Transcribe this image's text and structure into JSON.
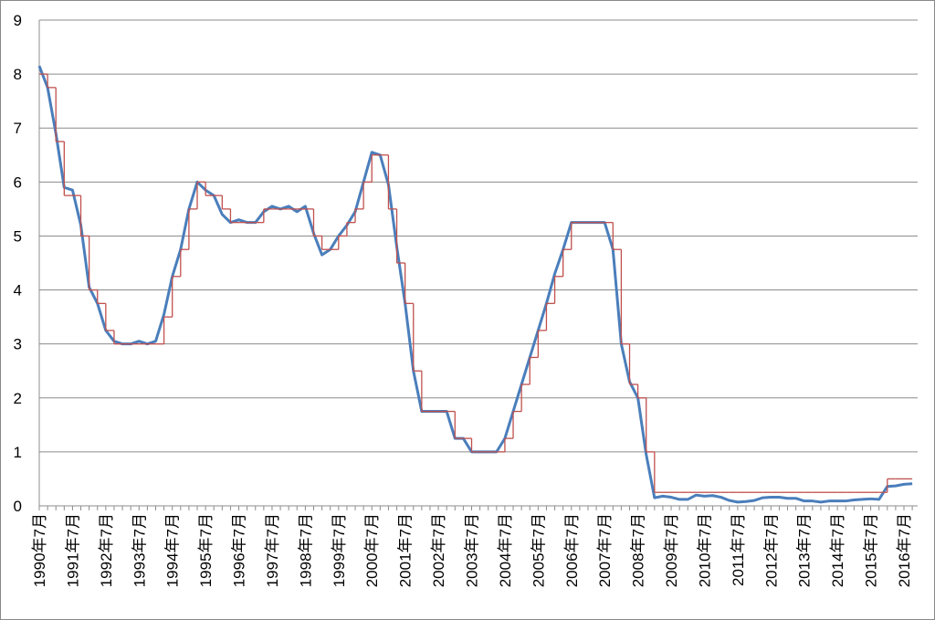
{
  "chart_data": {
    "type": "line",
    "categories": [
      "1990年7月",
      null,
      null,
      null,
      "1991年7月",
      null,
      null,
      null,
      "1992年7月",
      null,
      null,
      null,
      "1993年7月",
      null,
      null,
      null,
      "1994年7月",
      null,
      null,
      null,
      "1995年7月",
      null,
      null,
      null,
      "1996年7月",
      null,
      null,
      null,
      "1997年7月",
      null,
      null,
      null,
      "1998年7月",
      null,
      null,
      null,
      "1999年7月",
      null,
      null,
      null,
      "2000年7月",
      null,
      null,
      null,
      "2001年7月",
      null,
      null,
      null,
      "2002年7月",
      null,
      null,
      null,
      "2003年7月",
      null,
      null,
      null,
      "2004年7月",
      null,
      null,
      null,
      "2005年7月",
      null,
      null,
      null,
      "2006年7月",
      null,
      null,
      null,
      "2007年7月",
      null,
      null,
      null,
      "2008年7月",
      null,
      null,
      null,
      "2009年7月",
      null,
      null,
      null,
      "2010年7月",
      null,
      null,
      null,
      "2011年7月",
      null,
      null,
      null,
      "2012年7月",
      null,
      null,
      null,
      "2013年7月",
      null,
      null,
      null,
      "2014年7月",
      null,
      null,
      null,
      "2015年7月",
      null,
      null,
      null,
      "2016年7月",
      null
    ],
    "series": [
      {
        "color": "#4a7ebb",
        "values": [
          8.15,
          7.75,
          6.9,
          5.9,
          5.85,
          5.2,
          4.05,
          3.75,
          3.25,
          3.05,
          3.0,
          3.0,
          3.05,
          3.0,
          3.05,
          3.55,
          4.25,
          4.75,
          5.5,
          6.0,
          5.85,
          5.75,
          5.4,
          5.25,
          5.3,
          5.25,
          5.25,
          5.45,
          5.55,
          5.5,
          5.55,
          5.45,
          5.55,
          5.05,
          4.65,
          4.75,
          5.0,
          5.2,
          5.45,
          6.0,
          6.55,
          6.5,
          5.95,
          4.8,
          3.75,
          2.5,
          1.75,
          1.75,
          1.75,
          1.75,
          1.25,
          1.25,
          1.0,
          1.0,
          1.0,
          1.0,
          1.25,
          1.75,
          2.25,
          2.75,
          3.25,
          3.75,
          4.3,
          4.75,
          5.25,
          5.25,
          5.25,
          5.25,
          5.25,
          4.75,
          3.0,
          2.3,
          2.0,
          0.95,
          0.15,
          0.18,
          0.16,
          0.12,
          0.12,
          0.2,
          0.18,
          0.19,
          0.16,
          0.1,
          0.07,
          0.08,
          0.1,
          0.15,
          0.16,
          0.16,
          0.14,
          0.14,
          0.09,
          0.09,
          0.07,
          0.09,
          0.09,
          0.09,
          0.11,
          0.12,
          0.13,
          0.12,
          0.36,
          0.37,
          0.4,
          0.41
        ]
      },
      {
        "color": "#c0504d",
        "step": true,
        "values": [
          8.0,
          7.75,
          6.75,
          5.75,
          5.75,
          5.0,
          4.0,
          3.75,
          3.25,
          3.0,
          3.0,
          3.0,
          3.0,
          3.0,
          3.0,
          3.5,
          4.25,
          4.75,
          5.5,
          6.0,
          5.75,
          5.75,
          5.5,
          5.25,
          5.25,
          5.25,
          5.25,
          5.5,
          5.5,
          5.5,
          5.5,
          5.5,
          5.5,
          5.0,
          4.75,
          4.75,
          5.0,
          5.25,
          5.5,
          6.0,
          6.5,
          6.5,
          5.5,
          4.5,
          3.75,
          2.5,
          1.75,
          1.75,
          1.75,
          1.75,
          1.25,
          1.25,
          1.0,
          1.0,
          1.0,
          1.0,
          1.25,
          1.75,
          2.25,
          2.75,
          3.25,
          3.75,
          4.25,
          4.75,
          5.25,
          5.25,
          5.25,
          5.25,
          5.25,
          4.75,
          3.0,
          2.25,
          2.0,
          1.0,
          0.25,
          0.25,
          0.25,
          0.25,
          0.25,
          0.25,
          0.25,
          0.25,
          0.25,
          0.25,
          0.25,
          0.25,
          0.25,
          0.25,
          0.25,
          0.25,
          0.25,
          0.25,
          0.25,
          0.25,
          0.25,
          0.25,
          0.25,
          0.25,
          0.25,
          0.25,
          0.25,
          0.25,
          0.5,
          0.5,
          0.5,
          0.5
        ]
      }
    ],
    "ylim": [
      0,
      9
    ],
    "yticks": [
      0,
      1,
      2,
      3,
      4,
      5,
      6,
      7,
      8,
      9
    ],
    "grid": true
  }
}
